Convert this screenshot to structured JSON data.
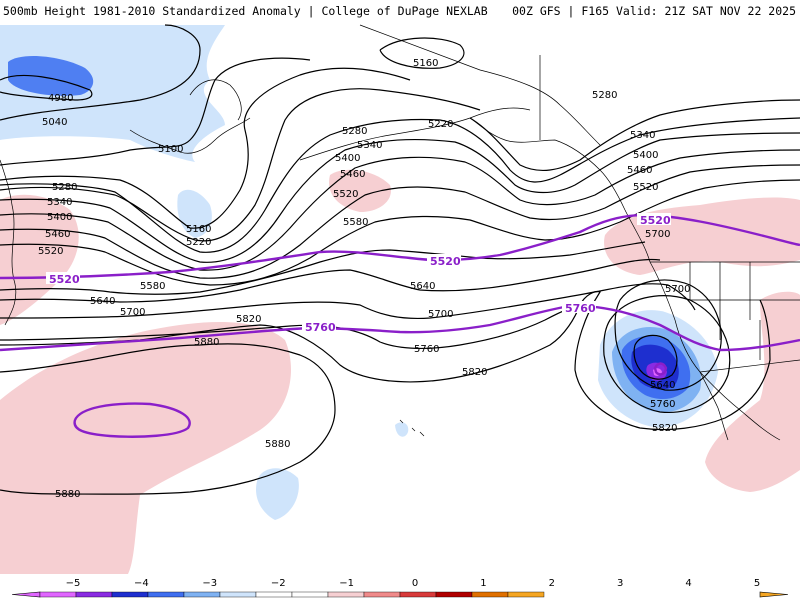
{
  "header": {
    "left": "500mb Height 1981-2010 Standardized Anomaly | College of DuPage NEXLAB",
    "right": "00Z GFS | F165 Valid: 21Z SAT NOV 22 2025"
  },
  "colors": {
    "contour": "#000000",
    "highlight_contour": "#8a1fc9",
    "anom_neg1": "#cfe4fb",
    "anom_neg2": "#7fb2f2",
    "anom_neg3": "#3f6ff0",
    "anom_neg4": "#1e2fcf",
    "anom_neg5": "#8a2be2",
    "anom_pos1": "#f6cfd2",
    "coast": "#000000"
  },
  "contour_labels": {
    "c4980": "4980",
    "c5040": "5040",
    "c5100": "5100",
    "c5160a": "5160",
    "c5160b": "5160",
    "c5220a": "5220",
    "c5220b": "5220",
    "c5280a": "5280",
    "c5280b": "5280",
    "c5280c": "5280",
    "c5340a": "5340",
    "c5340b": "5340",
    "c5340c": "5340",
    "c5400a": "5400",
    "c5400b": "5400",
    "c5400c": "5400",
    "c5460a": "5460",
    "c5460b": "5460",
    "c5460c": "5460",
    "c5520a": "5520",
    "c5520b": "5520",
    "c5520c": "5520",
    "c5580a": "5580",
    "c5580b": "5580",
    "c5640a": "5640",
    "c5640b": "5640",
    "c5640c": "5640",
    "c5700a": "5700",
    "c5700b": "5700",
    "c5700c": "5700",
    "c5700d": "5700",
    "c5760a": "5760",
    "c5760b": "5760",
    "c5820a": "5820",
    "c5820b": "5820",
    "c5820c": "5820",
    "c5880a": "5880",
    "c5880b": "5880",
    "c5880c": "5880"
  },
  "highlight_labels": {
    "h5520a": "5520",
    "h5520b": "5520",
    "h5520c": "5520",
    "h5760a": "5760",
    "h5760b": "5760"
  },
  "legend": {
    "ticks": [
      "−5",
      "−4",
      "−3",
      "−2",
      "−1",
      "0",
      "1",
      "2",
      "3",
      "4",
      "5"
    ],
    "colors": [
      "#e066ff",
      "#8a2be2",
      "#1e2fcf",
      "#3f6ff0",
      "#7fb2f2",
      "#cfe4fb",
      "#ffffff",
      "#ffffff",
      "#f6cfd2",
      "#f08a8a",
      "#d83a3a",
      "#b00000",
      "#e07000",
      "#f5a623"
    ]
  }
}
